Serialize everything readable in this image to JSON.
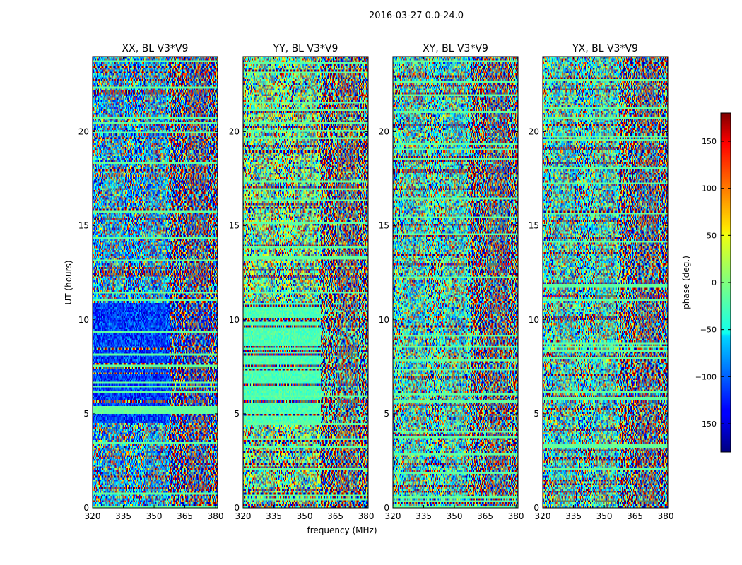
{
  "figure": {
    "suptitle": "2016-03-27 0.0-24.0"
  },
  "chart_data": [
    {
      "type": "heatmap",
      "title": "XX, BL V3*V9",
      "xlabel": "",
      "ylabel": "UT (hours)",
      "xlim": [
        320,
        381
      ],
      "ylim": [
        0,
        24
      ],
      "xticks": [
        320,
        335,
        350,
        365,
        380
      ],
      "yticks": [
        0,
        5,
        10,
        15,
        20
      ],
      "values_description_colorscale": "jet"
    },
    {
      "type": "heatmap",
      "title": "YY, BL V3*V9",
      "xlabel": "frequency (MHz)",
      "ylabel": "",
      "xlim": [
        320,
        381
      ],
      "ylim": [
        0,
        24
      ],
      "xticks": [
        320,
        335,
        350,
        365,
        380
      ],
      "yticks": [
        0,
        5,
        10,
        15,
        20
      ],
      "values_description_colorscale": "jet"
    },
    {
      "type": "heatmap",
      "title": "XY, BL V3*V9",
      "xlabel": "",
      "ylabel": "",
      "xlim": [
        320,
        381
      ],
      "ylim": [
        0,
        24
      ],
      "xticks": [
        320,
        335,
        350,
        365,
        380
      ],
      "yticks": [
        0,
        5,
        10,
        15,
        20
      ],
      "values_description_colorscale": "jet"
    },
    {
      "type": "heatmap",
      "title": "YX, BL V3*V9",
      "xlabel": "",
      "ylabel": "",
      "xlim": [
        320,
        381
      ],
      "ylim": [
        0,
        24
      ],
      "xticks": [
        320,
        335,
        350,
        365,
        380
      ],
      "yticks": [
        0,
        5,
        10,
        15,
        20
      ],
      "values_description_colorscale": "jet"
    }
  ],
  "colorbar": {
    "label": "phase (deg.)",
    "range": [
      -180,
      180
    ],
    "ticks": [
      -150,
      -100,
      -50,
      0,
      50,
      100,
      150
    ],
    "tick_labels": [
      "−150",
      "−100",
      "−50",
      "0",
      "50",
      "100",
      "150"
    ],
    "colormap": "jet"
  }
}
